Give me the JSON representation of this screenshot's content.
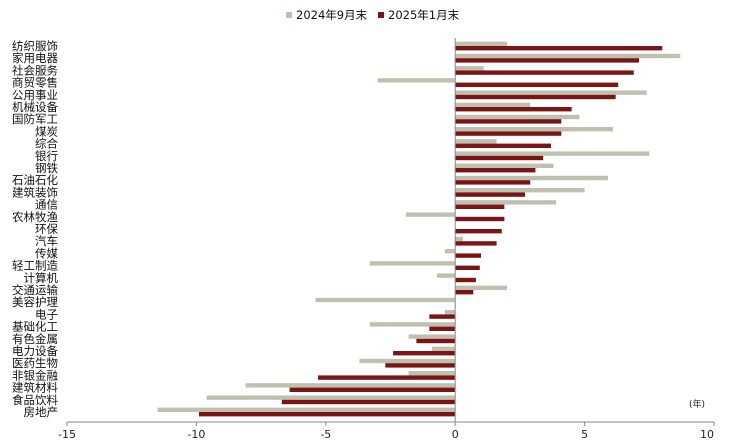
{
  "chart_data": {
    "type": "bar",
    "orientation": "horizontal",
    "categories": [
      "纺织服饰",
      "家用电器",
      "社会服务",
      "商贸零售",
      "公用事业",
      "机械设备",
      "国防军工",
      "煤炭",
      "综合",
      "银行",
      "钢铁",
      "石油石化",
      "建筑装饰",
      "通信",
      "农林牧渔",
      "环保",
      "汽车",
      "传媒",
      "轻工制造",
      "计算机",
      "交通运输",
      "美容护理",
      "电子",
      "基础化工",
      "有色金属",
      "电力设备",
      "医药生物",
      "非银金融",
      "建筑材料",
      "食品饮料",
      "房地产"
    ],
    "series": [
      {
        "name": "2024年9月末",
        "color": "#c0c0ae",
        "values": [
          2.0,
          8.7,
          1.1,
          -3.0,
          7.4,
          2.9,
          4.8,
          6.1,
          1.6,
          7.5,
          3.8,
          5.9,
          5.0,
          3.9,
          -1.9,
          0.0,
          0.3,
          -0.4,
          -3.3,
          -0.7,
          2.0,
          -5.4,
          -0.4,
          -3.3,
          -1.8,
          -0.9,
          -3.7,
          -1.8,
          -8.1,
          -9.6,
          -11.5
        ]
      },
      {
        "name": "2025年1月末",
        "color": "#7b1416",
        "values": [
          8.0,
          7.1,
          6.9,
          6.3,
          6.2,
          4.5,
          4.1,
          4.1,
          3.7,
          3.4,
          3.1,
          2.9,
          2.7,
          1.9,
          1.9,
          1.8,
          1.6,
          1.0,
          0.95,
          0.8,
          0.7,
          0.0,
          -1.0,
          -1.0,
          -1.5,
          -2.4,
          -2.7,
          -5.3,
          -6.4,
          -6.7,
          -9.9
        ]
      }
    ],
    "xlim": [
      -15,
      10
    ],
    "xticks": [
      "-15",
      "-10",
      "-5",
      "0",
      "5",
      "10"
    ],
    "xlabel": "(年)",
    "ylabel": "",
    "title": "",
    "legend_position": "top-center",
    "grid": false
  }
}
